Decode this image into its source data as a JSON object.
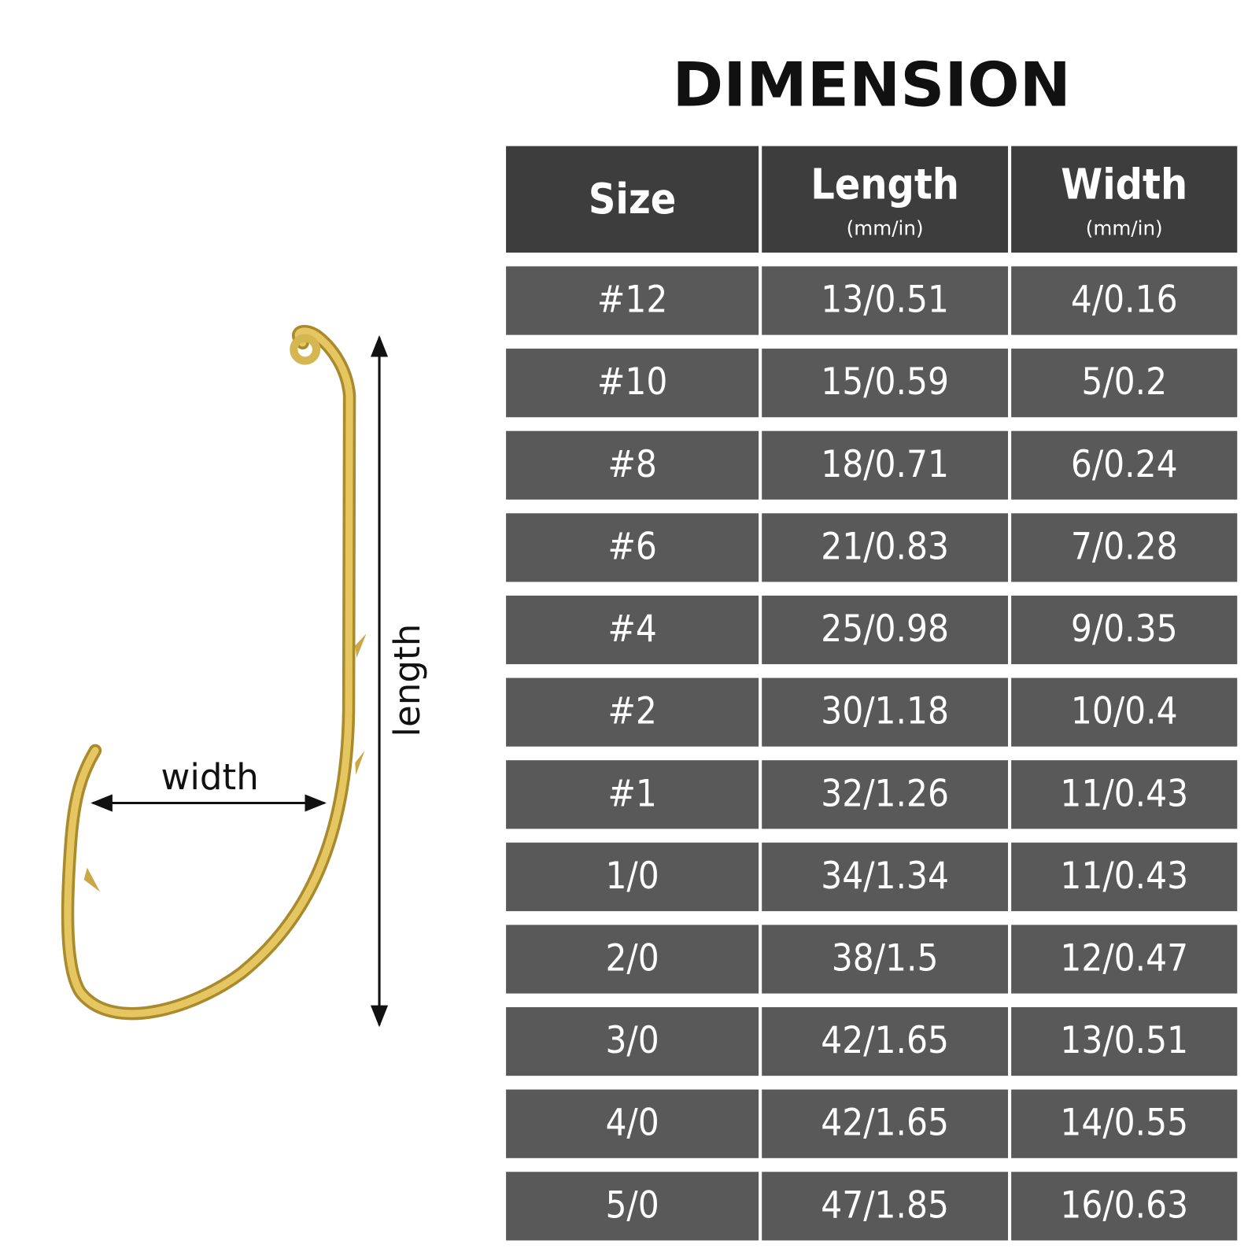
{
  "title": "DIMENSION",
  "diagram": {
    "width_label": "width",
    "length_label": "length"
  },
  "table": {
    "headers": [
      {
        "label": "Size"
      },
      {
        "label": "Length",
        "unit": "(mm/in)"
      },
      {
        "label": "Width",
        "unit": "(mm/in)"
      }
    ],
    "rows": [
      [
        "#12",
        "13/0.51",
        "4/0.16"
      ],
      [
        "#10",
        "15/0.59",
        "5/0.2"
      ],
      [
        "#8",
        "18/0.71",
        "6/0.24"
      ],
      [
        "#6",
        "21/0.83",
        "7/0.28"
      ],
      [
        "#4",
        "25/0.98",
        "9/0.35"
      ],
      [
        "#2",
        "30/1.18",
        "10/0.4"
      ],
      [
        "#1",
        "32/1.26",
        "11/0.43"
      ],
      [
        "1/0",
        "34/1.34",
        "11/0.43"
      ],
      [
        "2/0",
        "38/1.5",
        "12/0.47"
      ],
      [
        "3/0",
        "42/1.65",
        "13/0.51"
      ],
      [
        "4/0",
        "42/1.65",
        "14/0.55"
      ],
      [
        "5/0",
        "47/1.85",
        "16/0.63"
      ]
    ]
  }
}
